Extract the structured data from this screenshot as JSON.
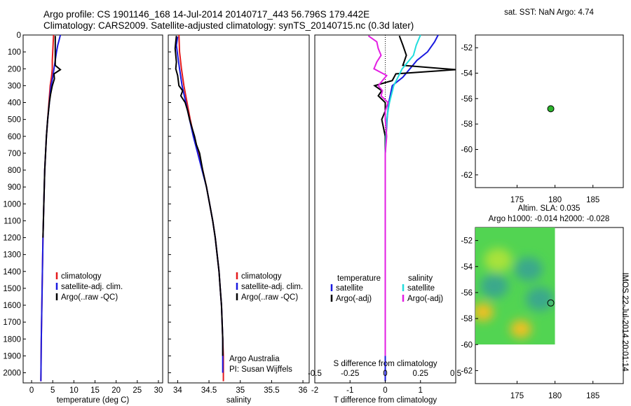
{
  "header": {
    "title_line1": "Argo profile: CS 1901146_168 14-Jul-2014 20140717_443 56.796S 179.442E",
    "title_line2": "Climatology: CARS2009. Satellite-adjusted climatology: synTS_20140715.nc (0.3d later)"
  },
  "colors": {
    "climatology": "#e41a1c",
    "satellite": "#1a1adf",
    "argo": "#000000",
    "salinity_satellite": "#22dddd",
    "salinity_argo": "#e31ee3",
    "marker_green": "#2db52d"
  },
  "side_texts": {
    "argo_australia": "Argo Australia",
    "pi": "PI: Susan Wijffels",
    "imos_stamp": "IMOS 22-Jul-2014 20:01:14"
  },
  "chart_data": [
    {
      "id": "temperature",
      "type": "line",
      "xlabel": "temperature (deg C)",
      "xlim": [
        -2,
        31
      ],
      "xticks": [
        0,
        5,
        10,
        15,
        20,
        25,
        30
      ],
      "ylim": [
        2060,
        0
      ],
      "yticks": [
        0,
        100,
        200,
        300,
        400,
        500,
        600,
        700,
        800,
        900,
        1000,
        1100,
        1200,
        1300,
        1400,
        1500,
        1600,
        1700,
        1800,
        1900,
        2000
      ],
      "legend": [
        "climatology",
        "satellite-adj. clim.",
        "Argo(..raw -QC)"
      ],
      "series": [
        {
          "name": "climatology",
          "color": "climatology",
          "points": [
            [
              5.2,
              0
            ],
            [
              5.1,
              50
            ],
            [
              5.0,
              100
            ],
            [
              4.9,
              150
            ],
            [
              4.9,
              200
            ],
            [
              4.7,
              250
            ],
            [
              4.4,
              300
            ],
            [
              4.1,
              400
            ],
            [
              3.8,
              500
            ],
            [
              3.5,
              600
            ],
            [
              3.3,
              700
            ],
            [
              3.1,
              800
            ],
            [
              2.9,
              1000
            ],
            [
              2.7,
              1200
            ],
            [
              2.5,
              1500
            ],
            [
              2.3,
              1800
            ],
            [
              2.2,
              2050
            ]
          ]
        },
        {
          "name": "satellite-adj. clim.",
          "color": "satellite",
          "points": [
            [
              6.8,
              0
            ],
            [
              6.5,
              30
            ],
            [
              6.2,
              60
            ],
            [
              5.9,
              100
            ],
            [
              5.6,
              150
            ],
            [
              5.3,
              200
            ],
            [
              5.0,
              250
            ],
            [
              4.6,
              300
            ],
            [
              4.2,
              400
            ],
            [
              3.8,
              500
            ],
            [
              3.5,
              600
            ],
            [
              3.3,
              700
            ],
            [
              3.1,
              800
            ],
            [
              2.9,
              1000
            ],
            [
              2.7,
              1200
            ],
            [
              2.5,
              1500
            ],
            [
              2.3,
              1800
            ],
            [
              2.2,
              2050
            ]
          ]
        },
        {
          "name": "Argo(..raw -QC)",
          "color": "argo",
          "points": [
            [
              5.6,
              5
            ],
            [
              5.6,
              60
            ],
            [
              5.6,
              120
            ],
            [
              5.6,
              180
            ],
            [
              6.8,
              205
            ],
            [
              5.3,
              230
            ],
            [
              5.4,
              260
            ],
            [
              4.9,
              300
            ],
            [
              4.5,
              350
            ],
            [
              4.2,
              400
            ],
            [
              3.8,
              500
            ],
            [
              3.5,
              600
            ],
            [
              3.3,
              700
            ],
            [
              3.1,
              800
            ],
            [
              2.9,
              1000
            ],
            [
              2.7,
              1200
            ]
          ]
        }
      ]
    },
    {
      "id": "salinity",
      "type": "line",
      "xlabel": "salinity",
      "xlim": [
        33.85,
        36.1
      ],
      "xticks": [
        34,
        34.5,
        35,
        35.5,
        36
      ],
      "ylim": [
        2060,
        0
      ],
      "yticks": [
        0,
        100,
        200,
        300,
        400,
        500,
        600,
        700,
        800,
        900,
        1000,
        1100,
        1200,
        1300,
        1400,
        1500,
        1600,
        1700,
        1800,
        1900,
        2000
      ],
      "legend": [
        "climatology",
        "satellite-adj. clim.",
        "Argo(..raw -QC)"
      ],
      "series": [
        {
          "name": "climatology",
          "color": "climatology",
          "points": [
            [
              34.02,
              0
            ],
            [
              34.03,
              100
            ],
            [
              34.06,
              200
            ],
            [
              34.1,
              300
            ],
            [
              34.15,
              400
            ],
            [
              34.2,
              500
            ],
            [
              34.26,
              600
            ],
            [
              34.33,
              700
            ],
            [
              34.4,
              800
            ],
            [
              34.46,
              900
            ],
            [
              34.51,
              1000
            ],
            [
              34.56,
              1100
            ],
            [
              34.6,
              1200
            ],
            [
              34.63,
              1300
            ],
            [
              34.66,
              1400
            ],
            [
              34.68,
              1500
            ],
            [
              34.7,
              1600
            ],
            [
              34.71,
              1700
            ],
            [
              34.72,
              1800
            ],
            [
              34.73,
              1900
            ],
            [
              34.73,
              2050
            ]
          ]
        },
        {
          "name": "satellite-adj. clim.",
          "color": "satellite",
          "points": [
            [
              34.0,
              10
            ],
            [
              33.98,
              60
            ],
            [
              34.0,
              120
            ],
            [
              34.03,
              200
            ],
            [
              34.07,
              300
            ],
            [
              34.13,
              400
            ],
            [
              34.19,
              500
            ],
            [
              34.25,
              600
            ],
            [
              34.32,
              700
            ],
            [
              34.39,
              800
            ],
            [
              34.46,
              900
            ],
            [
              34.51,
              1000
            ],
            [
              34.56,
              1100
            ],
            [
              34.6,
              1200
            ],
            [
              34.63,
              1300
            ],
            [
              34.66,
              1400
            ],
            [
              34.68,
              1500
            ],
            [
              34.7,
              1600
            ],
            [
              34.71,
              1700
            ],
            [
              34.72,
              1800
            ],
            [
              34.72,
              1900
            ],
            [
              34.72,
              2000
            ]
          ]
        },
        {
          "name": "Argo(..raw -QC)",
          "color": "argo",
          "points": [
            [
              33.98,
              5
            ],
            [
              33.97,
              40
            ],
            [
              33.96,
              80
            ],
            [
              33.97,
              120
            ],
            [
              33.98,
              160
            ],
            [
              33.97,
              200
            ],
            [
              34.0,
              240
            ],
            [
              34.01,
              270
            ],
            [
              34.02,
              300
            ],
            [
              34.08,
              330
            ],
            [
              34.05,
              360
            ],
            [
              34.12,
              400
            ],
            [
              34.16,
              450
            ],
            [
              34.19,
              500
            ],
            [
              34.23,
              550
            ],
            [
              34.27,
              600
            ],
            [
              34.3,
              650
            ],
            [
              34.35,
              700
            ],
            [
              34.4,
              800
            ],
            [
              34.46,
              900
            ],
            [
              34.51,
              1000
            ],
            [
              34.56,
              1100
            ],
            [
              34.6,
              1200
            ],
            [
              34.63,
              1300
            ],
            [
              34.66,
              1400
            ],
            [
              34.68,
              1500
            ],
            [
              34.7,
              1600
            ],
            [
              34.71,
              1700
            ],
            [
              34.72,
              1800
            ],
            [
              34.72,
              1900
            ]
          ]
        }
      ]
    },
    {
      "id": "differences",
      "type": "line",
      "xlabel": "T difference from climatology",
      "xlabel_top": "S difference from climatology",
      "xlim": [
        -2,
        2
      ],
      "xticks": [
        -2,
        -1,
        0,
        1
      ],
      "xticks_s": [
        -0.5,
        -0.25,
        0,
        0.25,
        0.5
      ],
      "xticks_s_labels": [
        "-0.5",
        "-0.25",
        "0",
        "0.25",
        "0.5"
      ],
      "ylim": [
        2060,
        0
      ],
      "legend_titles": [
        "temperature",
        "salinity"
      ],
      "legend": [
        "satellite",
        "Argo(-adj)",
        "satellite",
        "Argo(-adj)"
      ],
      "series": [
        {
          "name": "temperature satellite",
          "color": "satellite",
          "points": [
            [
              1.5,
              0
            ],
            [
              1.4,
              40
            ],
            [
              1.2,
              100
            ],
            [
              0.9,
              150
            ],
            [
              0.7,
              200
            ],
            [
              0.5,
              250
            ],
            [
              0.2,
              300
            ],
            [
              0.1,
              400
            ],
            [
              0.05,
              500
            ],
            [
              0.0,
              700
            ],
            [
              0.0,
              2050
            ]
          ]
        },
        {
          "name": "temperature Argo(-adj)",
          "color": "argo",
          "points": [
            [
              0.4,
              5
            ],
            [
              0.5,
              60
            ],
            [
              0.6,
              120
            ],
            [
              0.5,
              180
            ],
            [
              2.0,
              205
            ],
            [
              0.3,
              230
            ],
            [
              0.2,
              270
            ],
            [
              -0.3,
              300
            ],
            [
              -0.1,
              330
            ],
            [
              -0.2,
              360
            ],
            [
              0.0,
              400
            ],
            [
              0.0,
              450
            ],
            [
              -0.1,
              500
            ],
            [
              0.0,
              600
            ],
            [
              0.0,
              700
            ],
            [
              0.0,
              900
            ],
            [
              0.0,
              1200
            ]
          ]
        },
        {
          "name": "salinity satellite",
          "color": "salinity_satellite",
          "points": [
            [
              0.25,
              0
            ],
            [
              0.22,
              60
            ],
            [
              0.2,
              120
            ],
            [
              0.12,
              200
            ],
            [
              0.06,
              300
            ],
            [
              0.03,
              400
            ],
            [
              0.01,
              500
            ],
            [
              0.0,
              700
            ],
            [
              0.0,
              1000
            ],
            [
              0.0,
              1500
            ],
            [
              0.0,
              1900
            ]
          ]
        },
        {
          "name": "salinity Argo(-adj)",
          "color": "salinity_argo",
          "points": [
            [
              -0.12,
              5
            ],
            [
              -0.06,
              40
            ],
            [
              -0.05,
              80
            ],
            [
              -0.03,
              120
            ],
            [
              -0.06,
              160
            ],
            [
              -0.08,
              200
            ],
            [
              0.01,
              240
            ],
            [
              -0.02,
              270
            ],
            [
              -0.05,
              300
            ],
            [
              -0.02,
              330
            ],
            [
              -0.03,
              360
            ],
            [
              0.02,
              400
            ],
            [
              0.0,
              450
            ],
            [
              0.0,
              500
            ],
            [
              0.01,
              600
            ],
            [
              0.0,
              700
            ],
            [
              0.0,
              800
            ],
            [
              0.0,
              1000
            ],
            [
              0.0,
              1200
            ],
            [
              0.0,
              1500
            ],
            [
              0.0,
              1900
            ]
          ]
        }
      ]
    },
    {
      "id": "sst-map",
      "type": "scatter",
      "title": "sat. SST: NaN Argo: 4.74",
      "xlim": [
        169.5,
        189
      ],
      "xticks": [
        175,
        180,
        185
      ],
      "ylim": [
        -63,
        -51
      ],
      "yticks": [
        -52,
        -54,
        -56,
        -58,
        -60,
        -62
      ],
      "points": [
        {
          "x": 179.44,
          "y": -56.8
        }
      ]
    },
    {
      "id": "sla-map",
      "type": "heatmap",
      "title": "Altim. SLA: 0.035",
      "subtitle": "Argo h1000: -0.014 h2000: -0.028",
      "xlim": [
        169.5,
        189
      ],
      "xticks": [
        175,
        180,
        185
      ],
      "ylim": [
        -63,
        -51
      ],
      "yticks": [
        -52,
        -54,
        -56,
        -58,
        -60,
        -62
      ],
      "field_extent": {
        "lon": [
          169.5,
          180
        ],
        "lat": [
          -60,
          -51
        ]
      },
      "features": [
        {
          "lon": 172.0,
          "lat": -55.5,
          "level": "low"
        },
        {
          "lon": 176.5,
          "lat": -54.2,
          "level": "low"
        },
        {
          "lon": 178.0,
          "lat": -56.5,
          "level": "low"
        },
        {
          "lon": 170.5,
          "lat": -57.5,
          "level": "high"
        },
        {
          "lon": 175.5,
          "lat": -58.8,
          "level": "high"
        },
        {
          "lon": 172.5,
          "lat": -53.5,
          "level": "mid"
        }
      ],
      "points": [
        {
          "x": 179.44,
          "y": -56.8
        }
      ]
    }
  ]
}
